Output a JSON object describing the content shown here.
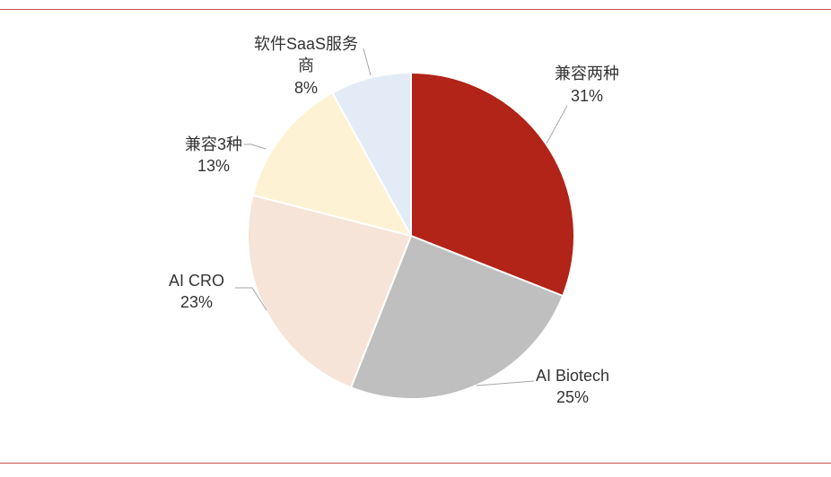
{
  "colors": {
    "rule": "#c0504d"
  },
  "chart_data": {
    "type": "pie",
    "title": "",
    "start_angle_deg": 0,
    "direction": "clockwise",
    "slices": [
      {
        "label": "兼容两种",
        "value": 31,
        "value_text": "31%",
        "color": "#b22318"
      },
      {
        "label": "AI Biotech",
        "value": 25,
        "value_text": "25%",
        "color": "#bfbfbf"
      },
      {
        "label": "AI CRO",
        "value": 23,
        "value_text": "23%",
        "color": "#f6e4d8"
      },
      {
        "label": "兼容3种",
        "value": 13,
        "value_text": "13%",
        "color": "#fdf2d4"
      },
      {
        "label_lines": [
          "软件SaaS服务",
          "商"
        ],
        "value": 8,
        "value_text": "8%",
        "color": "#e3ecf6"
      }
    ]
  }
}
